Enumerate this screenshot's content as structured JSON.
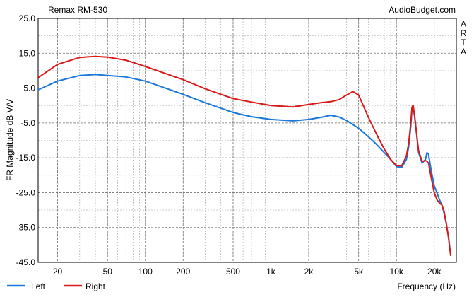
{
  "chart_data": {
    "type": "line",
    "title": "Remax RM-530",
    "source_label": "AudioBudget.com",
    "side_label": [
      "A",
      "R",
      "T",
      "A"
    ],
    "xlabel": "Frequency (Hz)",
    "ylabel": "FR Magnitude dB V/V",
    "xscale": "log",
    "xlim": [
      14,
      30000
    ],
    "ylim": [
      -45,
      25
    ],
    "xticks": [
      20,
      50,
      100,
      200,
      500,
      1000,
      2000,
      5000,
      10000,
      20000
    ],
    "xtick_labels": [
      "20",
      "50",
      "100",
      "200",
      "500",
      "1k",
      "2k",
      "5k",
      "10k",
      "20k"
    ],
    "yticks": [
      25,
      15,
      5,
      -5,
      -15,
      -25,
      -35,
      -45
    ],
    "ytick_labels": [
      "25.0",
      "15.0",
      "5.0",
      "-5.0",
      "-15.0",
      "-25.0",
      "-35.0",
      "-45.0"
    ],
    "grid": true,
    "legend_position": "bottom-left",
    "series": [
      {
        "name": "Left",
        "color": "#1a78d8",
        "x": [
          14,
          20,
          30,
          40,
          50,
          70,
          100,
          150,
          200,
          300,
          500,
          700,
          1000,
          1500,
          2000,
          2500,
          3000,
          3500,
          4000,
          5000,
          6000,
          7000,
          8000,
          9000,
          10000,
          11000,
          12000,
          12500,
          13000,
          13300,
          13600,
          14000,
          15000,
          16000,
          17000,
          17500,
          18000,
          19000,
          20000,
          21000,
          22000,
          23000,
          24000,
          25000,
          26000,
          27000
        ],
        "y": [
          4.5,
          7.0,
          8.6,
          8.9,
          8.6,
          8.2,
          7.0,
          4.8,
          3.2,
          0.8,
          -2.0,
          -3.2,
          -4.0,
          -4.4,
          -4.0,
          -3.4,
          -2.8,
          -3.3,
          -4.3,
          -6.5,
          -9.0,
          -11.3,
          -13.5,
          -15.5,
          -17.5,
          -17.8,
          -15.5,
          -12.0,
          -6.0,
          -1.0,
          -0.5,
          -3.5,
          -13.5,
          -16.5,
          -15.5,
          -13.5,
          -14.0,
          -19.0,
          -23.0,
          -25.0,
          -27.0,
          -28.5,
          -31.0,
          -34.0,
          -38.0,
          -42.5
        ]
      },
      {
        "name": "Right",
        "color": "#d81a1a",
        "x": [
          14,
          20,
          30,
          40,
          50,
          70,
          100,
          150,
          200,
          300,
          500,
          700,
          1000,
          1500,
          2000,
          2500,
          3000,
          3500,
          4000,
          4500,
          5000,
          6000,
          7000,
          8000,
          9000,
          10000,
          11000,
          12000,
          12500,
          13000,
          13300,
          13600,
          14000,
          15000,
          16000,
          17000,
          17500,
          18000,
          19000,
          20000,
          21000,
          22000,
          23000,
          24000,
          25000,
          26000,
          27000
        ],
        "y": [
          8.0,
          11.8,
          13.8,
          14.1,
          13.9,
          13.0,
          11.2,
          9.0,
          7.4,
          4.8,
          2.0,
          1.0,
          0.0,
          -0.4,
          0.3,
          0.8,
          1.1,
          1.7,
          3.0,
          4.0,
          3.0,
          -3.5,
          -8.5,
          -12.5,
          -15.5,
          -17.2,
          -17.3,
          -14.5,
          -11.0,
          -5.0,
          -0.5,
          0.0,
          -3.5,
          -13.0,
          -16.0,
          -15.8,
          -16.0,
          -16.5,
          -21.0,
          -25.0,
          -27.0,
          -28.0,
          -28.5,
          -30.5,
          -34.0,
          -38.0,
          -43.0
        ]
      }
    ]
  }
}
